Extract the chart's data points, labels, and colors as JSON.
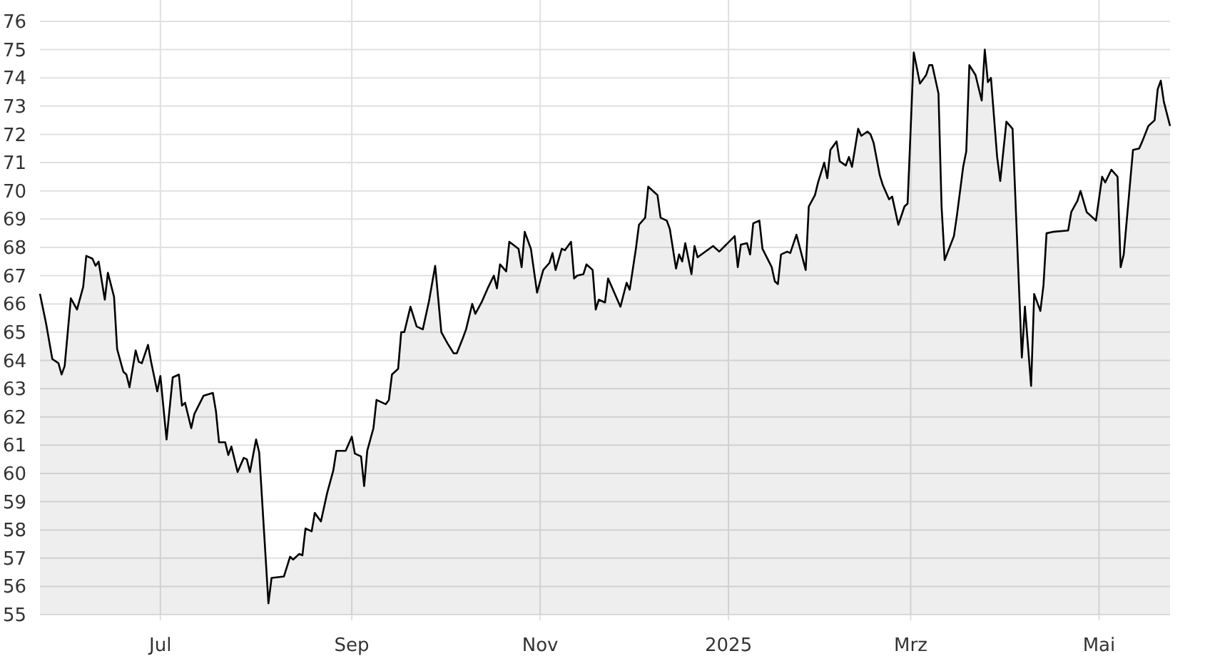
{
  "chart_data": {
    "type": "area",
    "x": [
      "2024-05-23",
      "2024-05-25",
      "2024-05-27",
      "2024-05-29",
      "2024-05-30",
      "2024-05-31",
      "2024-06-02",
      "2024-06-04",
      "2024-06-06",
      "2024-06-07",
      "2024-06-09",
      "2024-06-10",
      "2024-06-11",
      "2024-06-13",
      "2024-06-14",
      "2024-06-16",
      "2024-06-17",
      "2024-06-19",
      "2024-06-20",
      "2024-06-21",
      "2024-06-23",
      "2024-06-24",
      "2024-06-25",
      "2024-06-27",
      "2024-06-28",
      "2024-06-30",
      "2024-07-01",
      "2024-07-03",
      "2024-07-05",
      "2024-07-07",
      "2024-07-08",
      "2024-07-09",
      "2024-07-11",
      "2024-07-12",
      "2024-07-15",
      "2024-07-18",
      "2024-07-19",
      "2024-07-20",
      "2024-07-22",
      "2024-07-23",
      "2024-07-24",
      "2024-07-26",
      "2024-07-28",
      "2024-07-29",
      "2024-07-30",
      "2024-08-01",
      "2024-08-02",
      "2024-08-05",
      "2024-08-06",
      "2024-08-10",
      "2024-08-12",
      "2024-08-13",
      "2024-08-15",
      "2024-08-16",
      "2024-08-17",
      "2024-08-19",
      "2024-08-20",
      "2024-08-22",
      "2024-08-24",
      "2024-08-26",
      "2024-08-27",
      "2024-08-30",
      "2024-09-01",
      "2024-09-02",
      "2024-09-04",
      "2024-09-05",
      "2024-09-06",
      "2024-09-08",
      "2024-09-09",
      "2024-09-12",
      "2024-09-13",
      "2024-09-14",
      "2024-09-16",
      "2024-09-17",
      "2024-09-18",
      "2024-09-20",
      "2024-09-22",
      "2024-09-24",
      "2024-09-26",
      "2024-09-28",
      "2024-09-30",
      "2024-10-02",
      "2024-10-04",
      "2024-10-05",
      "2024-10-07",
      "2024-10-08",
      "2024-10-10",
      "2024-10-11",
      "2024-10-13",
      "2024-10-15",
      "2024-10-17",
      "2024-10-18",
      "2024-10-19",
      "2024-10-21",
      "2024-10-22",
      "2024-10-25",
      "2024-10-26",
      "2024-10-27",
      "2024-10-29",
      "2024-10-31",
      "2024-11-02",
      "2024-11-04",
      "2024-11-05",
      "2024-11-06",
      "2024-11-08",
      "2024-11-09",
      "2024-11-11",
      "2024-11-12",
      "2024-11-13",
      "2024-11-15",
      "2024-11-16",
      "2024-11-18",
      "2024-11-19",
      "2024-11-20",
      "2024-11-22",
      "2024-11-23",
      "2024-11-25",
      "2024-11-27",
      "2024-11-29",
      "2024-11-30",
      "2024-12-02",
      "2024-12-03",
      "2024-12-05",
      "2024-12-06",
      "2024-12-08",
      "2024-12-09",
      "2024-12-10",
      "2024-12-12",
      "2024-12-13",
      "2024-12-15",
      "2024-12-16",
      "2024-12-17",
      "2024-12-18",
      "2024-12-20",
      "2024-12-21",
      "2024-12-22",
      "2024-12-27",
      "2024-12-29",
      "2025-01-03",
      "2025-01-04",
      "2025-01-05",
      "2025-01-07",
      "2025-01-08",
      "2025-01-09",
      "2025-01-11",
      "2025-01-12",
      "2025-01-15",
      "2025-01-16",
      "2025-01-17",
      "2025-01-18",
      "2025-01-20",
      "2025-01-21",
      "2025-01-23",
      "2025-01-26",
      "2025-01-27",
      "2025-01-29",
      "2025-01-30",
      "2025-02-01",
      "2025-02-02",
      "2025-02-03",
      "2025-02-05",
      "2025-02-06",
      "2025-02-08",
      "2025-02-09",
      "2025-02-10",
      "2025-02-12",
      "2025-02-13",
      "2025-02-15",
      "2025-02-16",
      "2025-02-17",
      "2025-02-19",
      "2025-02-20",
      "2025-02-22",
      "2025-02-23",
      "2025-02-25",
      "2025-02-27",
      "2025-02-28",
      "2025-03-01",
      "2025-03-02",
      "2025-03-04",
      "2025-03-06",
      "2025-03-07",
      "2025-03-08",
      "2025-03-10",
      "2025-03-11",
      "2025-03-12",
      "2025-03-15",
      "2025-03-16",
      "2025-03-18",
      "2025-03-19",
      "2025-03-20",
      "2025-03-22",
      "2025-03-24",
      "2025-03-25",
      "2025-03-26",
      "2025-03-27",
      "2025-03-29",
      "2025-03-30",
      "2025-04-01",
      "2025-04-03",
      "2025-04-06",
      "2025-04-07",
      "2025-04-09",
      "2025-04-10",
      "2025-04-12",
      "2025-04-13",
      "2025-04-14",
      "2025-04-16",
      "2025-04-21",
      "2025-04-22",
      "2025-04-24",
      "2025-04-25",
      "2025-04-27",
      "2025-04-30",
      "2025-05-02",
      "2025-05-03",
      "2025-05-05",
      "2025-05-07",
      "2025-05-08",
      "2025-05-09",
      "2025-05-12",
      "2025-05-14",
      "2025-05-15",
      "2025-05-17",
      "2025-05-19",
      "2025-05-20",
      "2025-05-21",
      "2025-05-22",
      "2025-05-24"
    ],
    "series": [
      {
        "color": "#000000",
        "values": [
          66.36,
          65.3,
          64.05,
          63.9,
          63.5,
          63.8,
          66.2,
          65.8,
          66.6,
          67.7,
          67.6,
          67.35,
          67.5,
          66.15,
          67.1,
          66.25,
          64.4,
          63.6,
          63.5,
          63.05,
          64.35,
          63.95,
          63.9,
          64.55,
          63.95,
          62.9,
          63.45,
          61.2,
          63.4,
          63.5,
          62.4,
          62.5,
          61.6,
          62.1,
          62.75,
          62.85,
          62.2,
          61.1,
          61.1,
          60.65,
          60.95,
          60.05,
          60.55,
          60.5,
          60.05,
          61.2,
          60.75,
          55.4,
          56.3,
          56.35,
          57.05,
          56.95,
          57.15,
          57.1,
          58.05,
          57.95,
          58.6,
          58.3,
          59.3,
          60.1,
          60.8,
          60.8,
          61.3,
          60.7,
          60.6,
          59.55,
          60.8,
          61.6,
          62.6,
          62.45,
          62.6,
          63.5,
          63.7,
          65.0,
          65.0,
          65.9,
          65.2,
          65.1,
          66.1,
          67.35,
          65.0,
          64.6,
          64.25,
          64.25,
          64.8,
          65.1,
          66.0,
          65.65,
          66.05,
          66.55,
          67.0,
          66.55,
          67.4,
          67.15,
          68.2,
          67.95,
          67.3,
          68.55,
          67.95,
          66.4,
          67.2,
          67.45,
          67.8,
          67.2,
          67.95,
          67.9,
          68.2,
          66.9,
          67.0,
          67.05,
          67.4,
          67.2,
          65.8,
          66.15,
          66.05,
          66.9,
          66.4,
          65.9,
          66.75,
          66.5,
          67.95,
          68.8,
          69.05,
          70.15,
          69.95,
          69.85,
          69.05,
          68.95,
          68.65,
          67.25,
          67.75,
          67.5,
          68.15,
          67.05,
          68.05,
          67.65,
          68.05,
          67.85,
          68.4,
          67.3,
          68.1,
          68.15,
          67.75,
          68.85,
          68.95,
          67.95,
          67.3,
          66.8,
          66.7,
          67.75,
          67.85,
          67.8,
          68.45,
          67.2,
          69.45,
          69.85,
          70.3,
          71.0,
          70.45,
          71.45,
          71.75,
          71.05,
          70.9,
          71.2,
          70.85,
          72.2,
          71.95,
          72.1,
          72.0,
          71.7,
          70.55,
          70.2,
          69.7,
          69.8,
          68.8,
          69.45,
          69.55,
          72.2,
          74.9,
          73.8,
          74.1,
          74.45,
          74.45,
          73.45,
          69.45,
          67.55,
          68.4,
          69.15,
          70.85,
          71.4,
          74.45,
          74.1,
          73.2,
          75.0,
          73.85,
          74.0,
          71.2,
          70.35,
          72.45,
          72.2,
          64.1,
          65.9,
          63.1,
          66.35,
          65.75,
          66.65,
          68.5,
          68.55,
          68.6,
          69.25,
          69.65,
          70.0,
          69.25,
          68.95,
          70.5,
          70.3,
          70.75,
          70.5,
          67.3,
          67.75,
          71.45,
          71.5,
          71.75,
          72.3,
          72.5,
          73.6,
          73.9,
          73.15,
          72.3
        ]
      }
    ],
    "xlim": [
      "2024-05-23",
      "2025-05-24"
    ],
    "xticks": [
      {
        "value": "2024-07-01",
        "label": "Jul"
      },
      {
        "value": "2024-09-01",
        "label": "Sep"
      },
      {
        "value": "2024-11-01",
        "label": "Nov"
      },
      {
        "value": "2025-01-01",
        "label": "2025"
      },
      {
        "value": "2025-03-01",
        "label": "Mrz"
      },
      {
        "value": "2025-05-01",
        "label": "Mai"
      }
    ],
    "ylim": [
      55,
      76
    ],
    "yticks": [
      55,
      56,
      57,
      58,
      59,
      60,
      61,
      62,
      63,
      64,
      65,
      66,
      67,
      68,
      69,
      70,
      71,
      72,
      73,
      74,
      75,
      76
    ],
    "grid": true
  }
}
